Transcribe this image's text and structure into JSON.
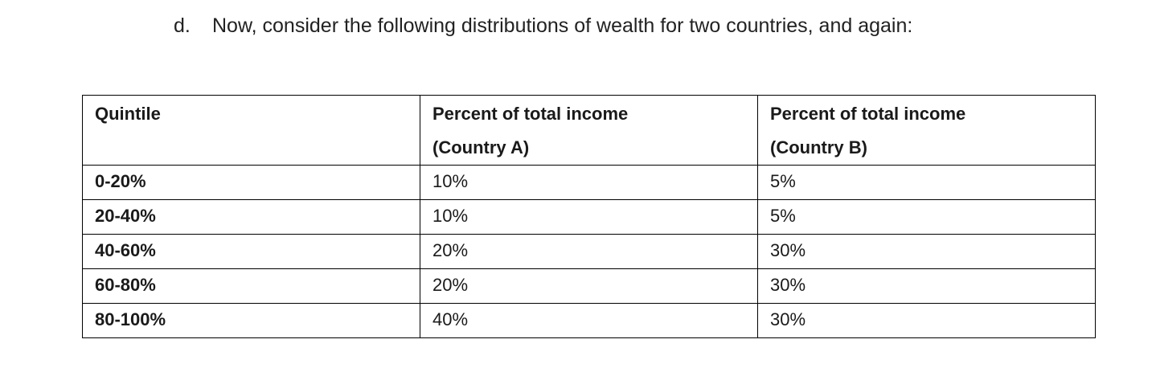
{
  "question": {
    "marker": "d.",
    "text": "Now, consider the following distributions of wealth for two countries, and again:"
  },
  "table": {
    "headers": [
      {
        "line1": "Quintile",
        "line2": ""
      },
      {
        "line1": "Percent of total income",
        "line2": "(Country A)"
      },
      {
        "line1": "Percent of total income",
        "line2": "(Country B)"
      }
    ],
    "rows": [
      {
        "quintile": "0-20%",
        "country_a": "10%",
        "country_b": "5%"
      },
      {
        "quintile": "20-40%",
        "country_a": "10%",
        "country_b": "5%"
      },
      {
        "quintile": "40-60%",
        "country_a": "20%",
        "country_b": "30%"
      },
      {
        "quintile": "60-80%",
        "country_a": "20%",
        "country_b": "30%"
      },
      {
        "quintile": "80-100%",
        "country_a": "40%",
        "country_b": "30%"
      }
    ]
  }
}
